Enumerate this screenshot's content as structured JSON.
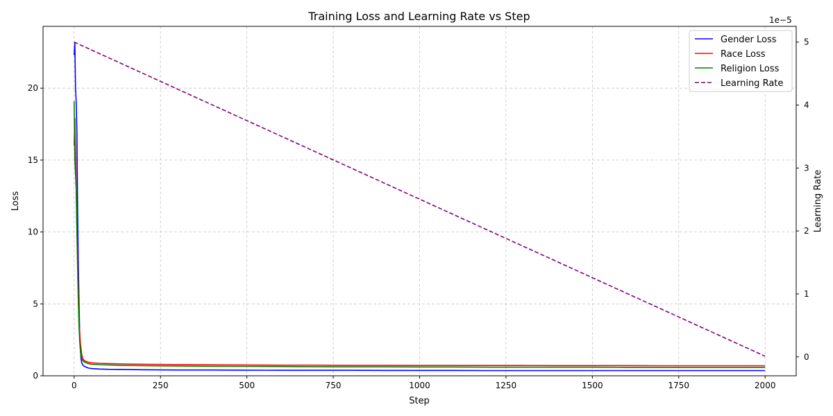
{
  "chart_data": {
    "type": "line",
    "title": "Training Loss and Learning Rate vs Step",
    "xlabel": "Step",
    "ylabel": "Loss",
    "y2label": "Learning Rate",
    "y2_scale_label": "1e−5",
    "xlim": [
      -90,
      2090
    ],
    "ylim": [
      0,
      24.3
    ],
    "y2lim": [
      -3e-06,
      5.25e-05
    ],
    "xticks": [
      0,
      250,
      500,
      750,
      1000,
      1250,
      1500,
      1750,
      2000
    ],
    "yticks": [
      0,
      5,
      10,
      15,
      20
    ],
    "y2ticks": [
      0,
      1,
      2,
      3,
      4,
      5
    ],
    "grid": true,
    "legend_position": "top-right",
    "series": [
      {
        "name": "Gender Loss",
        "axis": "left",
        "color": "#0000ff",
        "style": "solid",
        "x": [
          0,
          2,
          4,
          6,
          8,
          10,
          12,
          14,
          16,
          18,
          20,
          22,
          25,
          30,
          40,
          50,
          75,
          100,
          150,
          200,
          300,
          400,
          500,
          600,
          700,
          800,
          900,
          1000,
          1100,
          1200,
          1300,
          1400,
          1500,
          1600,
          1700,
          1800,
          1900,
          2000
        ],
        "y": [
          22.3,
          23.2,
          20.0,
          19.0,
          16.9,
          11.5,
          8.0,
          5.2,
          3.0,
          1.8,
          1.2,
          0.9,
          0.75,
          0.65,
          0.55,
          0.5,
          0.47,
          0.45,
          0.44,
          0.42,
          0.4,
          0.4,
          0.39,
          0.38,
          0.38,
          0.38,
          0.37,
          0.37,
          0.37,
          0.36,
          0.36,
          0.36,
          0.36,
          0.36,
          0.36,
          0.36,
          0.36,
          0.36
        ]
      },
      {
        "name": "Race Loss",
        "axis": "left",
        "color": "#ff0000",
        "style": "solid",
        "x": [
          0,
          2,
          4,
          6,
          8,
          10,
          12,
          14,
          16,
          18,
          20,
          22,
          25,
          30,
          40,
          50,
          75,
          100,
          150,
          200,
          300,
          400,
          500,
          600,
          700,
          800,
          900,
          1000,
          1100,
          1200,
          1300,
          1400,
          1500,
          1600,
          1700,
          1800,
          1900,
          2000
        ],
        "y": [
          16.0,
          17.9,
          15.5,
          13.0,
          10.5,
          8.5,
          6.0,
          4.2,
          3.0,
          2.3,
          1.9,
          1.5,
          1.2,
          1.05,
          0.95,
          0.9,
          0.87,
          0.85,
          0.82,
          0.8,
          0.78,
          0.76,
          0.75,
          0.74,
          0.74,
          0.73,
          0.73,
          0.72,
          0.72,
          0.72,
          0.72,
          0.71,
          0.71,
          0.71,
          0.7,
          0.7,
          0.7,
          0.7
        ]
      },
      {
        "name": "Religion Loss",
        "axis": "left",
        "color": "#008000",
        "style": "solid",
        "x": [
          0,
          2,
          4,
          6,
          8,
          10,
          12,
          14,
          16,
          18,
          20,
          22,
          25,
          30,
          40,
          50,
          75,
          100,
          150,
          200,
          300,
          400,
          500,
          600,
          700,
          800,
          900,
          1000,
          1100,
          1200,
          1300,
          1400,
          1500,
          1600,
          1700,
          1800,
          1900,
          2000
        ],
        "y": [
          19.1,
          15.0,
          14.0,
          13.0,
          10.0,
          7.5,
          5.2,
          3.5,
          2.4,
          1.8,
          1.4,
          1.2,
          1.05,
          0.95,
          0.85,
          0.8,
          0.77,
          0.75,
          0.72,
          0.7,
          0.68,
          0.66,
          0.65,
          0.64,
          0.63,
          0.62,
          0.62,
          0.61,
          0.61,
          0.6,
          0.6,
          0.6,
          0.6,
          0.59,
          0.59,
          0.59,
          0.59,
          0.59
        ]
      },
      {
        "name": "Learning Rate",
        "axis": "right",
        "color": "#800080",
        "style": "dashed",
        "x": [
          0,
          2000
        ],
        "y": [
          5e-05,
          1e-07
        ]
      }
    ]
  }
}
